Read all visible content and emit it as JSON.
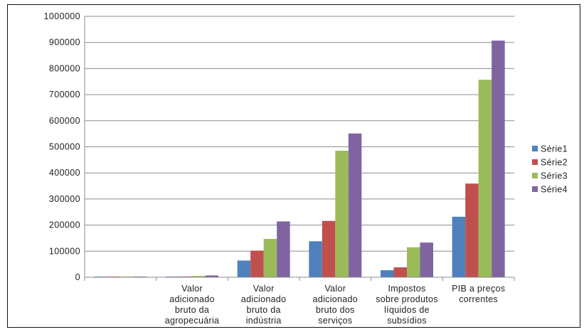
{
  "chart_data": {
    "type": "bar",
    "title": "",
    "xlabel": "",
    "ylabel": "",
    "ylim": [
      0,
      1000000
    ],
    "yticks": [
      0,
      100000,
      200000,
      300000,
      400000,
      500000,
      600000,
      700000,
      800000,
      900000,
      1000000
    ],
    "grid": true,
    "legend_position": "right",
    "categories": [
      [],
      [
        "Valor",
        "adicionado",
        "bruto da",
        "agropecuária"
      ],
      [
        "Valor",
        "adicionado",
        "bruto da",
        "indústria"
      ],
      [
        "Valor",
        "adicionado",
        "bruto dos",
        "serviços"
      ],
      [
        "Impostos",
        "sobre produtos",
        "líquidos de",
        "subsídios"
      ],
      [
        "PIB a preços",
        "correntes"
      ]
    ],
    "series": [
      {
        "name": "Série1",
        "color": "#4f81bd",
        "values": [
          1,
          2000,
          64000,
          138000,
          27000,
          232000
        ]
      },
      {
        "name": "Série2",
        "color": "#c0504d",
        "values": [
          2,
          3000,
          102000,
          216000,
          38000,
          359000
        ]
      },
      {
        "name": "Série3",
        "color": "#9bbb59",
        "values": [
          3,
          5000,
          147000,
          485000,
          115000,
          757000
        ]
      },
      {
        "name": "Série4",
        "color": "#8064a2",
        "values": [
          4,
          7000,
          214000,
          551000,
          133000,
          907000
        ]
      }
    ]
  }
}
